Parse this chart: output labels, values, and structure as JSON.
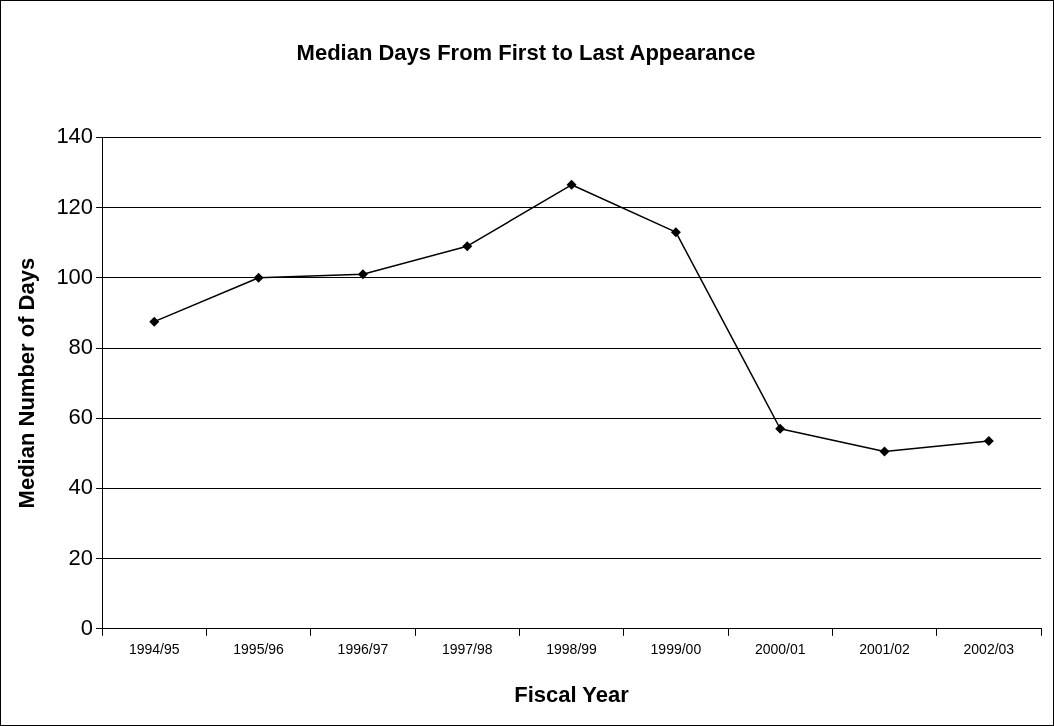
{
  "chart_data": {
    "type": "line",
    "title": "Median Days From First to Last Appearance",
    "xlabel": "Fiscal Year",
    "ylabel": "Median Number of Days",
    "categories": [
      "1994/95",
      "1995/96",
      "1996/97",
      "1997/98",
      "1998/99",
      "1999/00",
      "2000/01",
      "2001/02",
      "2002/03"
    ],
    "series": [
      {
        "color": "#000000",
        "values": [
          87.5,
          100,
          101,
          109,
          126.5,
          113,
          57,
          50.5,
          53.5
        ]
      }
    ],
    "ylim": [
      0,
      140
    ],
    "yticks": [
      0,
      20,
      40,
      60,
      80,
      100,
      120,
      140
    ],
    "grid": "y",
    "legend": false,
    "marker": "diamond",
    "line_style": "solid"
  }
}
